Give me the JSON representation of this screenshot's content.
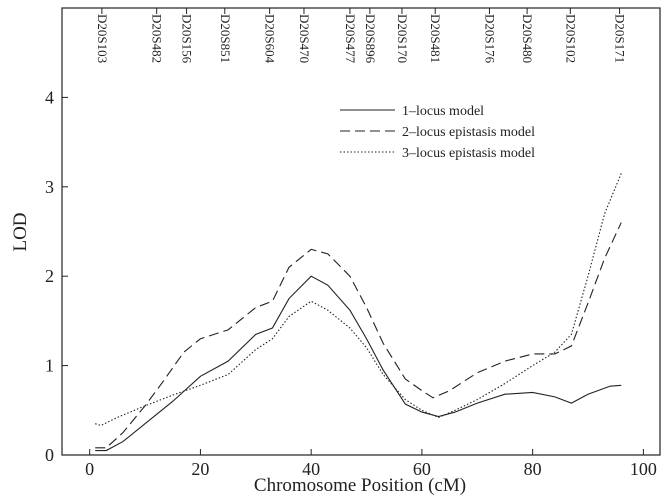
{
  "chart_data": {
    "type": "line",
    "x_label": "Chromosome Position (cM)",
    "y_label": "LOD",
    "xlim": [
      -5,
      103
    ],
    "ylim": [
      0,
      5
    ],
    "xticks": [
      0,
      20,
      40,
      60,
      80,
      100
    ],
    "yticks": [
      0,
      1,
      2,
      3,
      4
    ],
    "legend": "upper center",
    "markers": [
      {
        "label": "D20S103",
        "position": 2.2
      },
      {
        "label": "D20S482",
        "position": 12.1
      },
      {
        "label": "D20S156",
        "position": 17.5
      },
      {
        "label": "D20S851",
        "position": 24.4
      },
      {
        "label": "D20S604",
        "position": 32.5
      },
      {
        "label": "D20S470",
        "position": 38.7
      },
      {
        "label": "D20S477",
        "position": 47
      },
      {
        "label": "D20S896",
        "position": 50.6
      },
      {
        "label": "D20S170",
        "position": 56.4
      },
      {
        "label": "D20S481",
        "position": 62.4
      },
      {
        "label": "D20S176",
        "position": 72.2
      },
      {
        "label": "D20S480",
        "position": 79
      },
      {
        "label": "D20S102",
        "position": 86.8
      },
      {
        "label": "D20S171",
        "position": 95.7
      }
    ],
    "series": [
      {
        "name": "1–locus model",
        "color": "#222222",
        "style": "solid",
        "x": [
          1,
          3,
          6,
          10,
          15,
          20,
          25,
          30,
          33,
          36,
          40,
          43,
          47,
          50,
          53,
          57,
          60,
          63,
          66,
          70,
          75,
          80,
          84,
          87,
          90,
          94,
          96
        ],
        "values": [
          0.05,
          0.05,
          0.15,
          0.35,
          0.6,
          0.88,
          1.05,
          1.35,
          1.42,
          1.75,
          2.0,
          1.9,
          1.62,
          1.3,
          0.95,
          0.57,
          0.48,
          0.43,
          0.48,
          0.58,
          0.68,
          0.7,
          0.65,
          0.58,
          0.68,
          0.77,
          0.78
        ]
      },
      {
        "name": "2–locus epistasis model",
        "color": "#222222",
        "style": "dashed",
        "x": [
          1,
          3,
          6,
          10,
          13,
          17,
          20,
          25,
          30,
          33,
          36,
          40,
          43,
          47,
          50,
          53,
          57,
          60,
          62,
          65,
          70,
          75,
          80,
          84,
          87,
          90,
          93,
          96
        ],
        "values": [
          0.08,
          0.08,
          0.25,
          0.55,
          0.8,
          1.15,
          1.3,
          1.4,
          1.65,
          1.72,
          2.1,
          2.3,
          2.25,
          2.0,
          1.65,
          1.25,
          0.85,
          0.72,
          0.64,
          0.72,
          0.92,
          1.05,
          1.13,
          1.13,
          1.22,
          1.7,
          2.2,
          2.6
        ]
      },
      {
        "name": "3–locus epistasis model",
        "color": "#222222",
        "style": "dotted",
        "x": [
          1,
          2,
          5,
          10,
          15,
          20,
          25,
          30,
          33,
          36,
          40,
          43,
          47,
          50,
          53,
          57,
          60,
          63,
          66,
          70,
          75,
          80,
          84,
          87,
          90,
          93,
          96
        ],
        "values": [
          0.35,
          0.33,
          0.42,
          0.55,
          0.67,
          0.78,
          0.9,
          1.18,
          1.3,
          1.55,
          1.72,
          1.62,
          1.42,
          1.2,
          0.9,
          0.62,
          0.5,
          0.42,
          0.5,
          0.62,
          0.8,
          1.0,
          1.15,
          1.35,
          2.0,
          2.7,
          3.15
        ]
      }
    ]
  }
}
